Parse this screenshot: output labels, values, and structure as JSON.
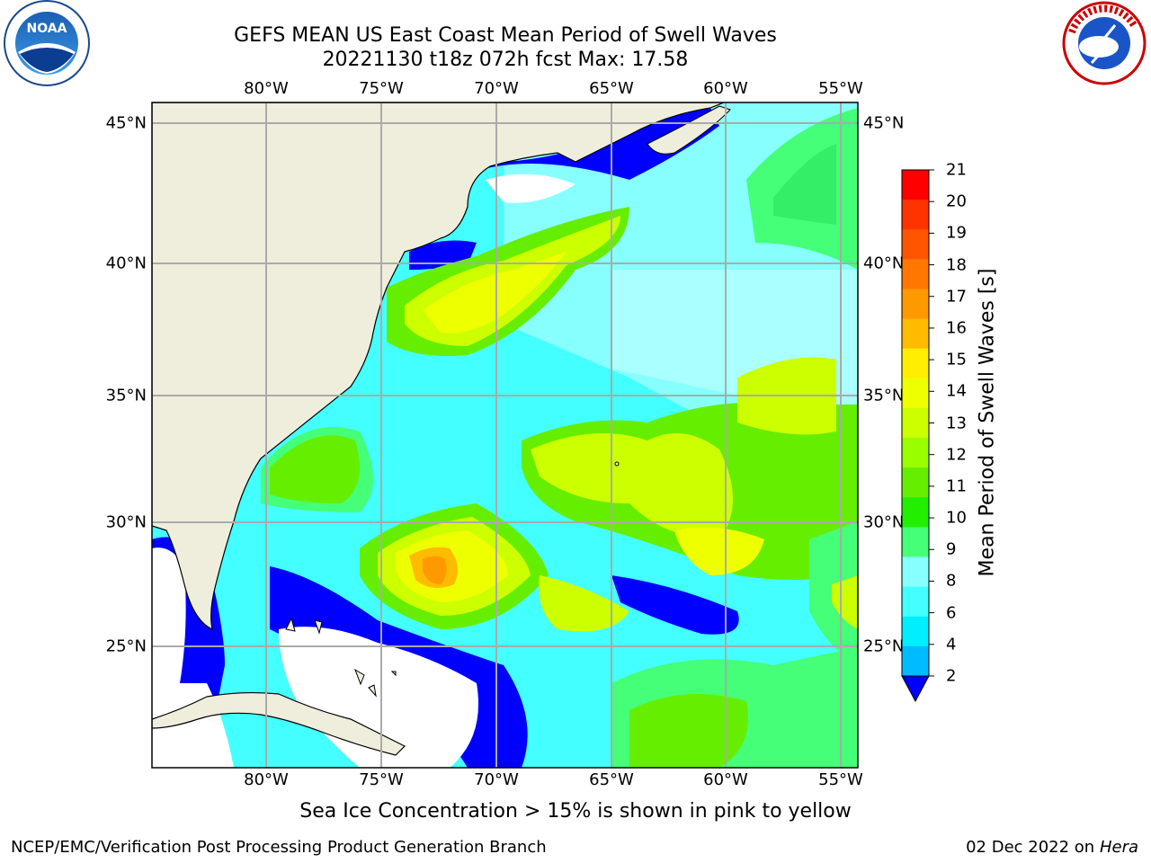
{
  "title": {
    "line1": "GEFS MEAN US East Coast Mean Period of Swell Waves",
    "line2": "20221130 t18z 072h fcst   Max: 17.58"
  },
  "map": {
    "lon_labels": [
      "80°W",
      "75°W",
      "70°W",
      "65°W",
      "60°W",
      "55°W"
    ],
    "lat_labels": [
      "45°N",
      "40°N",
      "35°N",
      "30°N",
      "25°N"
    ],
    "colors": {
      "land": "#efeddc",
      "grid": "#aaaaaa"
    }
  },
  "colorbar": {
    "title": "Mean Period of Swell Waves [s]",
    "ticks": [
      "21",
      "20",
      "19",
      "18",
      "17",
      "16",
      "15",
      "14",
      "13",
      "12",
      "11",
      "10",
      "9",
      "8",
      "6",
      "4",
      "2"
    ],
    "colors": [
      "#ff0000",
      "#ff3300",
      "#ff5500",
      "#ff7700",
      "#ff9900",
      "#ffbb00",
      "#ffee00",
      "#eeff00",
      "#ccff00",
      "#99ff00",
      "#66ee00",
      "#22ee00",
      "#44ff77",
      "#88ffff",
      "#44ffff",
      "#00eeff",
      "#00bbff",
      "#0077ff",
      "#0000ff"
    ]
  },
  "footer": {
    "ice_note": "Sea Ice Concentration > 15% is shown in pink to yellow",
    "credit": "NCEP/EMC/Verification Post Processing Product Generation Branch",
    "date": "02 Dec 2022 on",
    "machine": "Hera"
  },
  "logos": {
    "noaa": "NOAA",
    "nws": "NATIONAL WEATHER SERVICE"
  }
}
